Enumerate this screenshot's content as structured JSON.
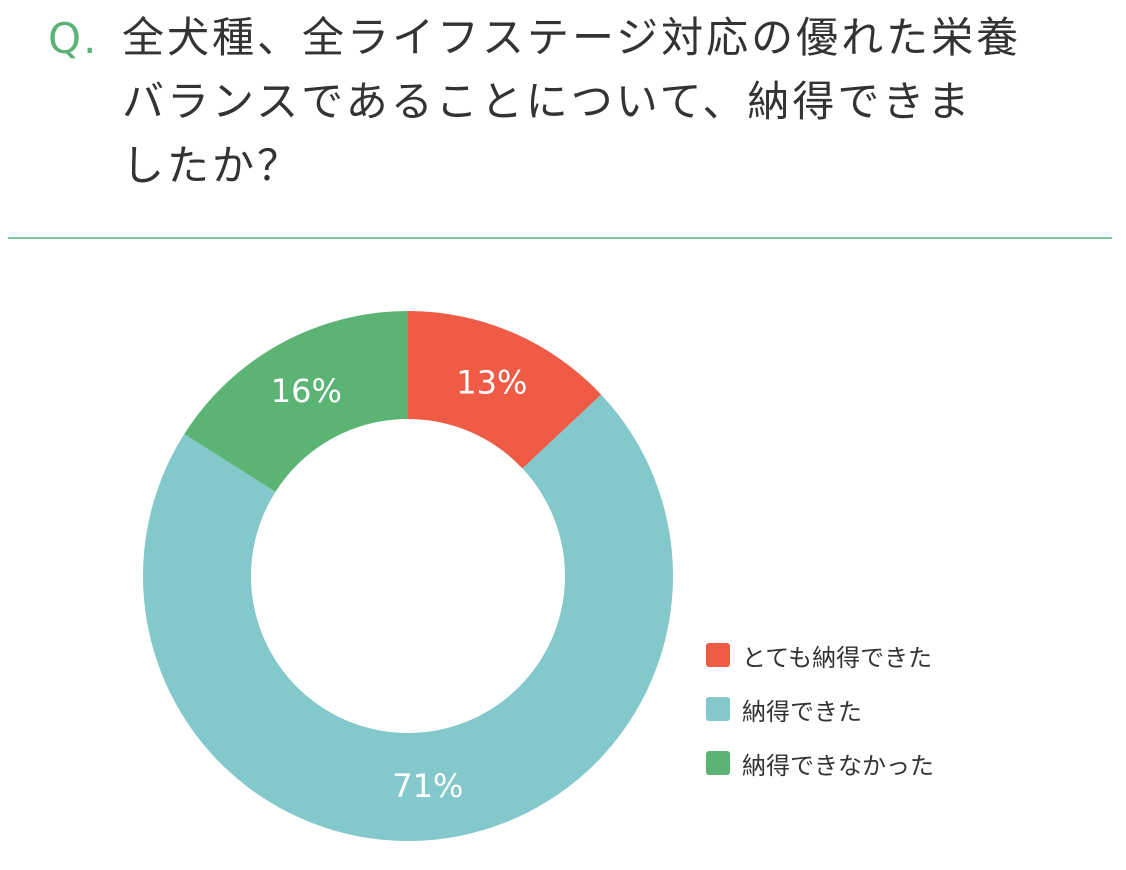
{
  "question": {
    "prefix": "Q.",
    "lines": [
      "全犬種、全ライフステージ対応の優れた栄養",
      "バランスであることについて、納得できま",
      "したか？"
    ]
  },
  "colors": {
    "accent": "#5cb376",
    "divider": "#7dc496",
    "text": "#333333"
  },
  "chart_data": {
    "type": "pie",
    "donut": true,
    "title": "",
    "categories": [
      "とても納得できた",
      "納得できた",
      "納得できなかった"
    ],
    "values": [
      13,
      71,
      16
    ],
    "labels": [
      "13%",
      "71%",
      "16%"
    ],
    "colors": [
      "#ef5b45",
      "#83c8ca",
      "#5bb374"
    ],
    "start": "12 o'clock",
    "direction": "clockwise",
    "legend_position": "bottom-right"
  }
}
